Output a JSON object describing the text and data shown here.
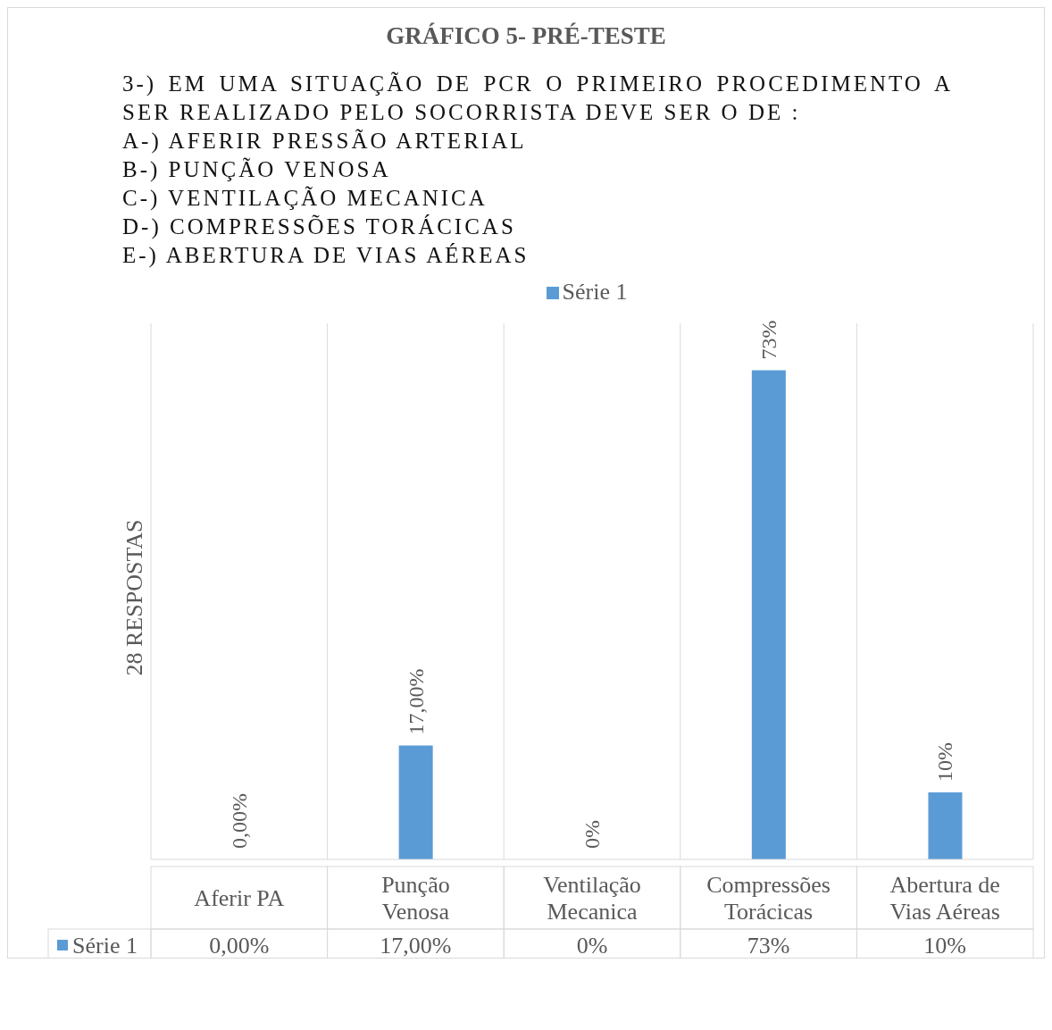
{
  "chart_data": {
    "type": "bar",
    "title": "GRÁFICO 5- PRÉ-TESTE",
    "subtitle": "3-) EM UMA SITUAÇÃO DE PCR O PRIMEIRO PROCEDIMENTO A SER REALIZADO PELO SOCORRISTA DEVE SER O DE :\nA-) AFERIR PRESSÃO ARTERIAL\nB-) PUNÇÃO VENOSA\nC-) VENTILAÇÃO MECANICA\nD-) COMPRESSÕES TORÁCICAS\nE-) ABERTURA DE VIAS AÉREAS",
    "ylabel": "28 RESPOSTAS",
    "categories": [
      "Aferir PA",
      "Punção Venosa",
      "Ventilação Mecanica",
      "Compressões Torácicas",
      "Abertura de Vias Aéreas"
    ],
    "series": [
      {
        "name": "Série 1",
        "color": "#5b9bd5",
        "values": [
          0,
          17,
          0,
          73,
          10
        ],
        "value_labels": [
          "0,00%",
          "17,00%",
          "0%",
          "73%",
          "10%"
        ]
      }
    ],
    "ylim": [
      0,
      80
    ],
    "grid": "x",
    "legend": "top",
    "data_labels": true,
    "tick_labels": "x"
  }
}
